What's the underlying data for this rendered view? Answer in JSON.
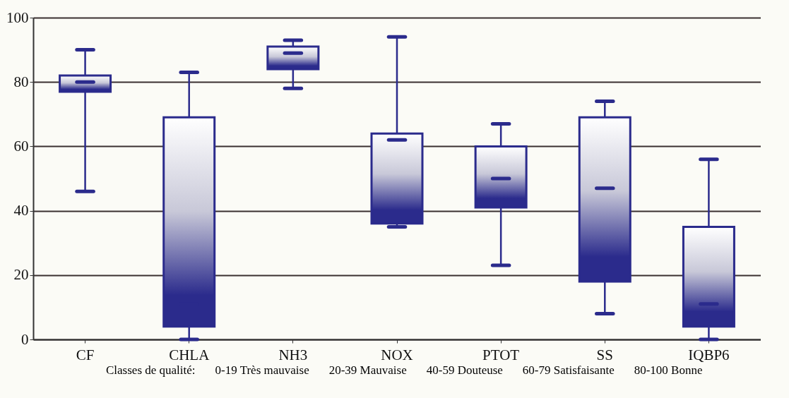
{
  "chart_data": {
    "type": "box",
    "categories": [
      "CF",
      "CHLA",
      "NH3",
      "NOX",
      "PTOT",
      "SS",
      "IQBP6"
    ],
    "boxes": [
      {
        "low": 46,
        "q1": 77,
        "median": 80,
        "q3": 82,
        "high": 90
      },
      {
        "low": 0,
        "q1": 4,
        "median": 11,
        "q3": 69,
        "high": 83
      },
      {
        "low": 78,
        "q1": 84,
        "median": 89,
        "q3": 91,
        "high": 93
      },
      {
        "low": 35,
        "q1": 36,
        "median": 62,
        "q3": 64,
        "high": 94
      },
      {
        "low": 23,
        "q1": 41,
        "median": 50,
        "q3": 60,
        "high": 67
      },
      {
        "low": 8,
        "q1": 18,
        "median": 47,
        "q3": 69,
        "high": 74
      },
      {
        "low": 0,
        "q1": 4,
        "median": 11,
        "q3": 35,
        "high": 56
      }
    ],
    "color": "#2b2b8c",
    "ylim": [
      0,
      100
    ],
    "yticks": [
      0,
      20,
      40,
      60,
      80,
      100
    ],
    "grid": "y",
    "annotations": [
      "Classes de qualité:",
      "0-19 Très mauvaise",
      "20-39 Mauvaise",
      "40-59 Douteuse",
      "60-79 Satisfaisante",
      "80-100 Bonne"
    ]
  }
}
